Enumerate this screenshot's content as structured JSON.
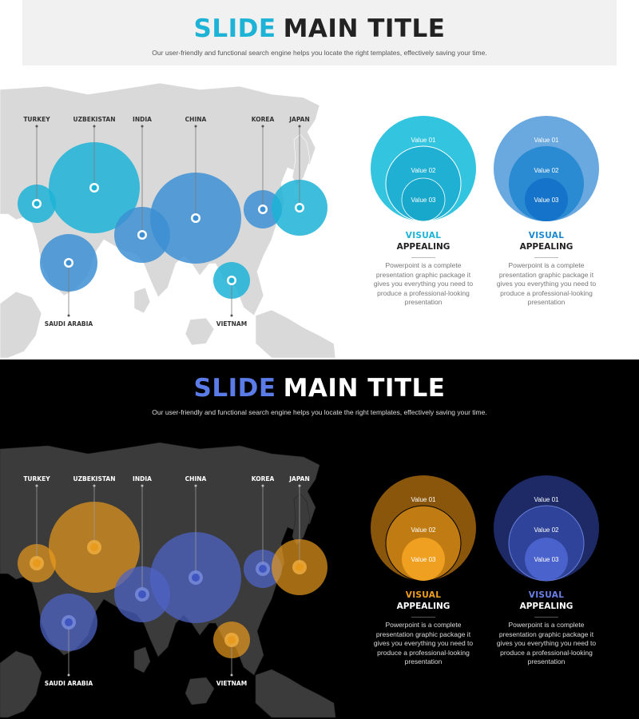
{
  "slides": [
    {
      "theme": "light",
      "title_accent": "SLIDE",
      "title_rest": "MAIN TITLE",
      "subtitle": "Our user-friendly and functional search engine helps you locate the right templates, effectively saving your time.",
      "colors": {
        "accent": "#1cb3d6",
        "secondary": "#3d8fd4",
        "map": "#d8d8d8"
      },
      "countries": [
        "TURKEY",
        "UZBEKISTAN",
        "INDIA",
        "CHINA",
        "KOREA",
        "JAPAN",
        "SAUDI ARABIA",
        "VIETNAM"
      ],
      "cards": [
        {
          "values": [
            "Value 01",
            "Value 02",
            "Value 03"
          ],
          "keyword": "VISUAL",
          "keyword2": "APPEALING",
          "description": "Powerpoint is a complete presentation graphic package it gives you everything you need to produce a professional-looking presentation"
        },
        {
          "values": [
            "Value 01",
            "Value 02",
            "Value 03"
          ],
          "keyword": "VISUAL",
          "keyword2": "APPEALING",
          "description": "Powerpoint is a complete presentation graphic package it gives you everything you need to produce a professional-looking presentation"
        }
      ]
    },
    {
      "theme": "dark",
      "title_accent": "SLIDE",
      "title_rest": "MAIN TITLE",
      "subtitle": "Our user-friendly and functional search engine helps you locate the right templates, effectively saving your time.",
      "colors": {
        "accent": "#e89a1c",
        "secondary": "#4d63c4",
        "map": "#3a3a3a"
      },
      "countries": [
        "TURKEY",
        "UZBEKISTAN",
        "INDIA",
        "CHINA",
        "KOREA",
        "JAPAN",
        "SAUDI ARABIA",
        "VIETNAM"
      ],
      "cards": [
        {
          "values": [
            "Value 01",
            "Value 02",
            "Value 03"
          ],
          "keyword": "VISUAL",
          "keyword2": "APPEALING",
          "description": "Powerpoint is a complete presentation graphic package it gives you everything you need to produce a professional-looking presentation"
        },
        {
          "values": [
            "Value 01",
            "Value 02",
            "Value 03"
          ],
          "keyword": "VISUAL",
          "keyword2": "APPEALING",
          "description": "Powerpoint is a complete presentation graphic package it gives you everything you need to produce a professional-looking presentation"
        }
      ]
    }
  ]
}
